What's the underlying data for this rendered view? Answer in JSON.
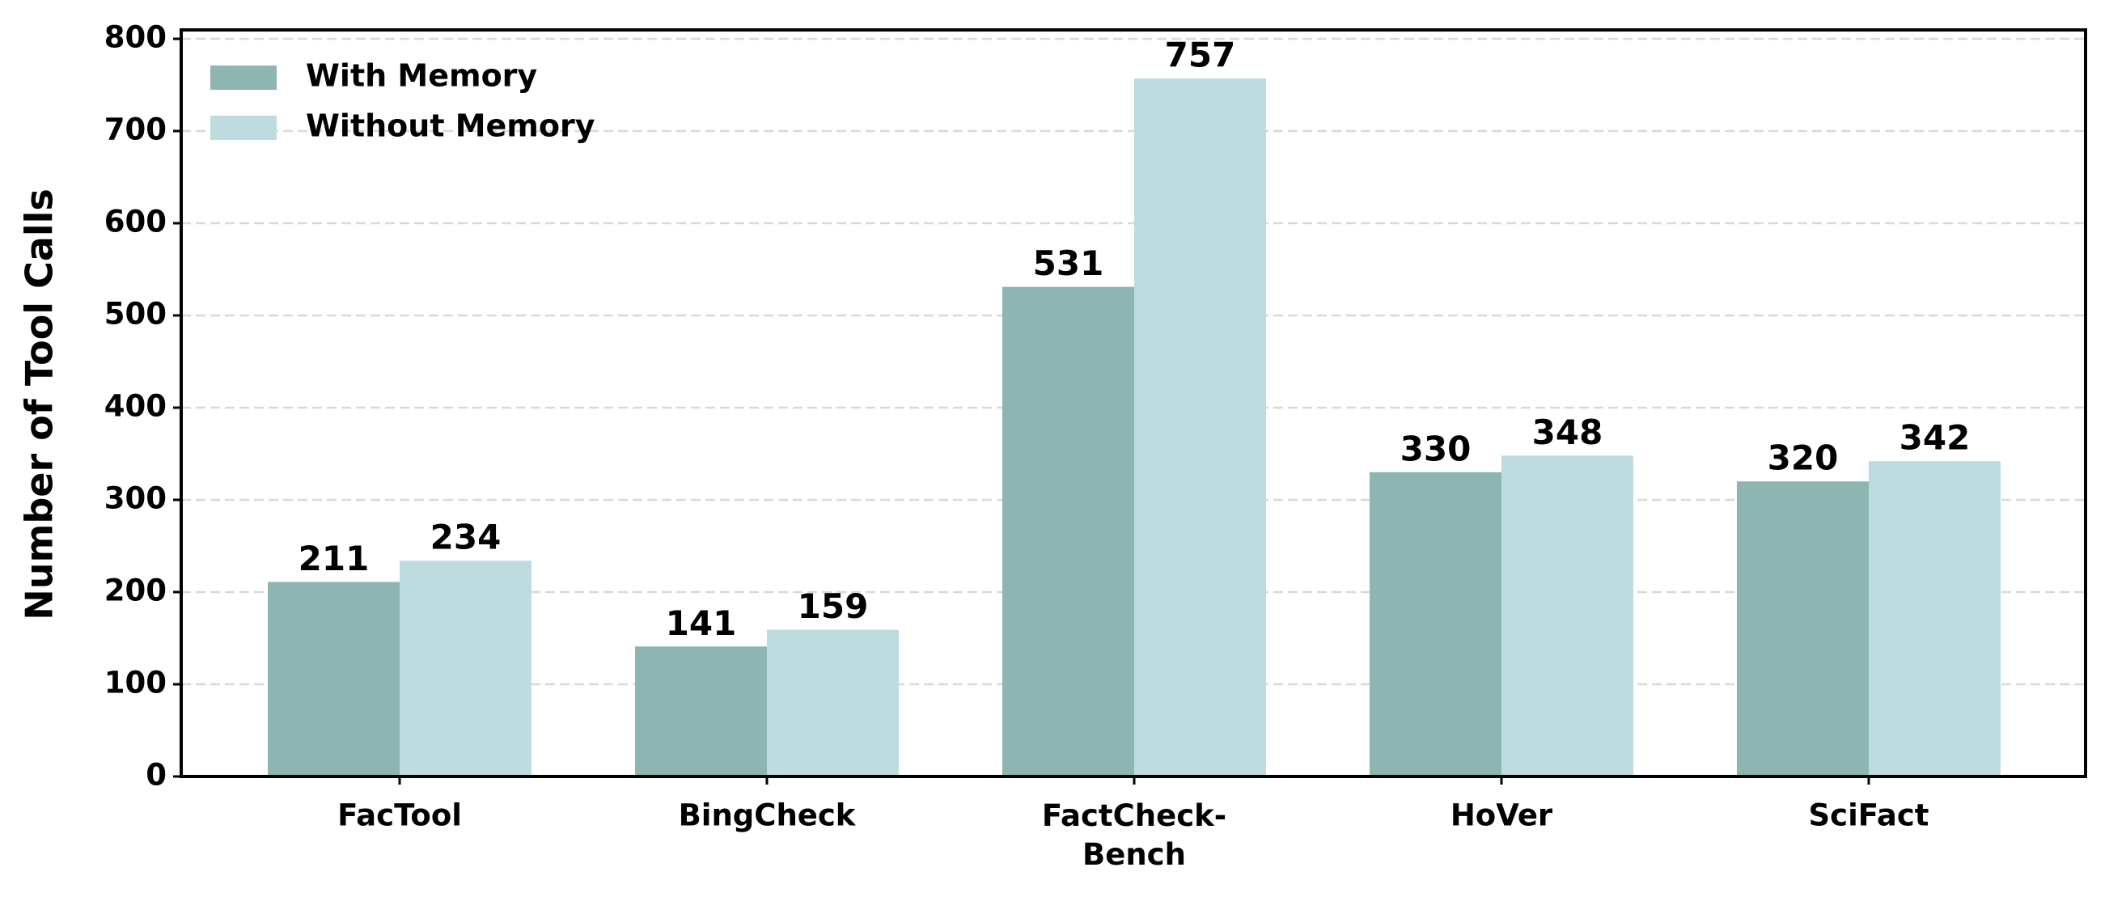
{
  "chart_data": {
    "type": "bar",
    "y_label": "Number of Tool Calls",
    "categories": [
      "FacTool",
      "BingCheck",
      "FactCheck-\nBench",
      "HoVer",
      "SciFact"
    ],
    "series": [
      {
        "name": "With Memory",
        "color": "#8db5b2",
        "values": [
          211,
          141,
          531,
          330,
          320
        ]
      },
      {
        "name": "Without Memory",
        "color": "#bedcdf",
        "values": [
          234,
          159,
          757,
          348,
          342
        ]
      }
    ],
    "ylim": [
      0,
      800
    ],
    "yticks": [
      0,
      100,
      200,
      300,
      400,
      500,
      600,
      700,
      800
    ],
    "grid": true,
    "legend": "upper-left"
  }
}
